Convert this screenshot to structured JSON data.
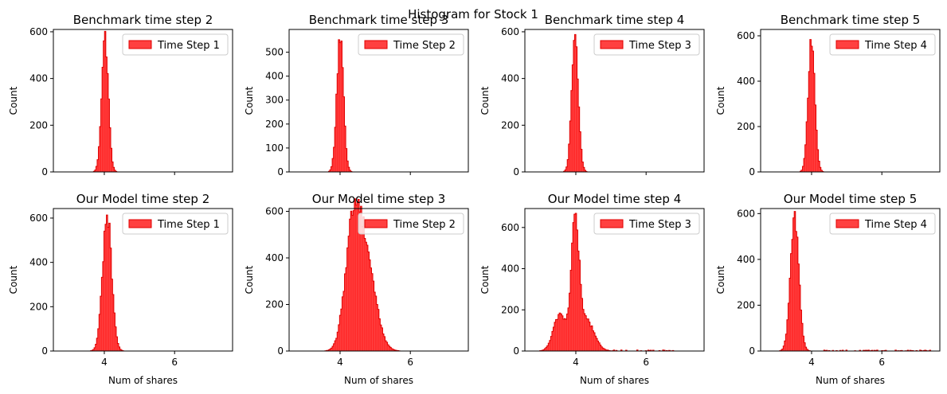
{
  "figure": {
    "suptitle": "Histogram for Stock 1"
  },
  "colors": {
    "fill": "#ff0000",
    "fill_opacity": 0.75,
    "edge": "#e00000",
    "axis": "#000000"
  },
  "chart_data": [
    {
      "type": "histogram",
      "title": "Benchmark time step 2",
      "legend": "Time Step 1",
      "legend_loc": "upper right",
      "xlabel": "",
      "ylabel": "Count",
      "xlim": [
        2.55,
        7.65
      ],
      "ylim": [
        0,
        610
      ],
      "xticks": [],
      "yticks": [
        0,
        200,
        400,
        600
      ],
      "components": [
        {
          "mean": 4.02,
          "sd": 0.095,
          "peak": 575
        }
      ]
    },
    {
      "type": "histogram",
      "title": "Benchmark time step 3",
      "legend": "Time Step 2",
      "legend_loc": "upper right",
      "xlabel": "",
      "ylabel": "Count",
      "xlim": [
        2.55,
        7.65
      ],
      "ylim": [
        0,
        595
      ],
      "xticks": [],
      "yticks": [
        0,
        100,
        200,
        300,
        400,
        500
      ],
      "components": [
        {
          "mean": 4.0,
          "sd": 0.095,
          "peak": 565
        }
      ]
    },
    {
      "type": "histogram",
      "title": "Benchmark time step 4",
      "legend": "Time Step 3",
      "legend_loc": "upper right",
      "xlabel": "",
      "ylabel": "Count",
      "xlim": [
        2.55,
        7.65
      ],
      "ylim": [
        0,
        610
      ],
      "xticks": [],
      "yticks": [
        0,
        200,
        400,
        600
      ],
      "components": [
        {
          "mean": 3.98,
          "sd": 0.095,
          "peak": 575
        }
      ]
    },
    {
      "type": "histogram",
      "title": "Benchmark time step 5",
      "legend": "Time Step 4",
      "legend_loc": "upper right",
      "xlabel": "",
      "ylabel": "Count",
      "xlim": [
        2.55,
        7.65
      ],
      "ylim": [
        0,
        628
      ],
      "xticks": [],
      "yticks": [
        0,
        200,
        400,
        600
      ],
      "components": [
        {
          "mean": 4.0,
          "sd": 0.095,
          "peak": 595
        }
      ]
    },
    {
      "type": "histogram",
      "title": "Our Model time step 2",
      "legend": "Time Step 1",
      "legend_loc": "upper right",
      "xlabel": "Num of shares",
      "ylabel": "Count",
      "xlim": [
        2.55,
        7.65
      ],
      "ylim": [
        0,
        643
      ],
      "xticks": [
        4,
        6
      ],
      "yticks": [
        0,
        200,
        400,
        600
      ],
      "components": [
        {
          "mean": 4.08,
          "sd": 0.13,
          "peak": 612
        }
      ]
    },
    {
      "type": "histogram",
      "title": "Our Model time step 3",
      "legend": "Time Step 2",
      "legend_loc": "upper right",
      "xlabel": "Num of shares",
      "ylabel": "Count",
      "xlim": [
        2.55,
        7.65
      ],
      "ylim": [
        0,
        612
      ],
      "xticks": [
        4,
        6
      ],
      "yticks": [
        0,
        200,
        400,
        600
      ],
      "components": [
        {
          "mean": 4.35,
          "sd": 0.22,
          "peak": 440
        },
        {
          "mean": 4.72,
          "sd": 0.28,
          "peak": 400
        }
      ]
    },
    {
      "type": "histogram",
      "title": "Our Model time step 4",
      "legend": "Time Step 3",
      "legend_loc": "upper right",
      "xlabel": "Num of shares",
      "ylabel": "Count",
      "xlim": [
        2.55,
        7.65
      ],
      "ylim": [
        0,
        692
      ],
      "xticks": [
        4,
        6
      ],
      "yticks": [
        0,
        200,
        400,
        600
      ],
      "components": [
        {
          "mean": 3.98,
          "sd": 0.11,
          "peak": 600
        },
        {
          "mean": 3.55,
          "sd": 0.18,
          "peak": 180
        },
        {
          "mean": 4.3,
          "sd": 0.22,
          "peak": 150
        }
      ],
      "tail": {
        "from": 4.9,
        "to": 6.8,
        "level": 5
      }
    },
    {
      "type": "histogram",
      "title": "Our Model time step 5",
      "legend": "Time Step 4",
      "legend_loc": "upper right",
      "xlabel": "Num of shares",
      "ylabel": "Count",
      "xlim": [
        2.55,
        7.65
      ],
      "ylim": [
        0,
        622
      ],
      "xticks": [
        4,
        6
      ],
      "yticks": [
        0,
        200,
        400,
        600
      ],
      "components": [
        {
          "mean": 3.52,
          "sd": 0.12,
          "peak": 582
        }
      ],
      "tail": {
        "from": 4.3,
        "to": 7.4,
        "level": 4
      }
    }
  ]
}
